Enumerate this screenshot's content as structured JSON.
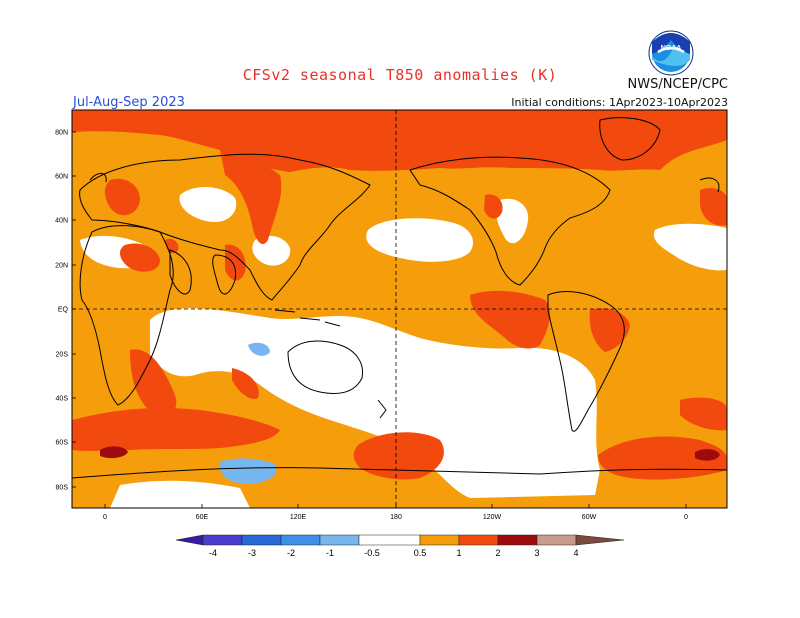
{
  "header": {
    "title": "CFSv2 seasonal T850 anomalies (K)",
    "season": "Jul-Aug-Sep 2023",
    "agency": "NWS/NCEP/CPC",
    "initial_conditions": "Initial conditions: 1Apr2023-10Apr2023",
    "logo_text": "NOAA"
  },
  "map": {
    "lat_labels": [
      "80N",
      "60N",
      "40N",
      "20N",
      "EQ",
      "20S",
      "40S",
      "60S",
      "80S"
    ],
    "lon_labels": [
      "0",
      "60E",
      "120E",
      "180",
      "120W",
      "60W",
      "0"
    ]
  },
  "colorbar": {
    "tick_labels": [
      "-4",
      "-3",
      "-2",
      "-1",
      "-0.5",
      "0.5",
      "1",
      "2",
      "3",
      "4"
    ],
    "colors": {
      "lt_neg4": "#3a1aa0",
      "neg4_neg3": "#4a3ccd",
      "neg3_neg2": "#2868d8",
      "neg2_neg1": "#3c90e8",
      "neg1_neg05": "#78b6f0",
      "neutral": "#ffffff",
      "p05_1": "#f59d0a",
      "p1_2": "#f24a0e",
      "p2_3": "#9e0b0f",
      "p3_4": "#c99a8e",
      "gt4": "#7a4a3a"
    }
  }
}
